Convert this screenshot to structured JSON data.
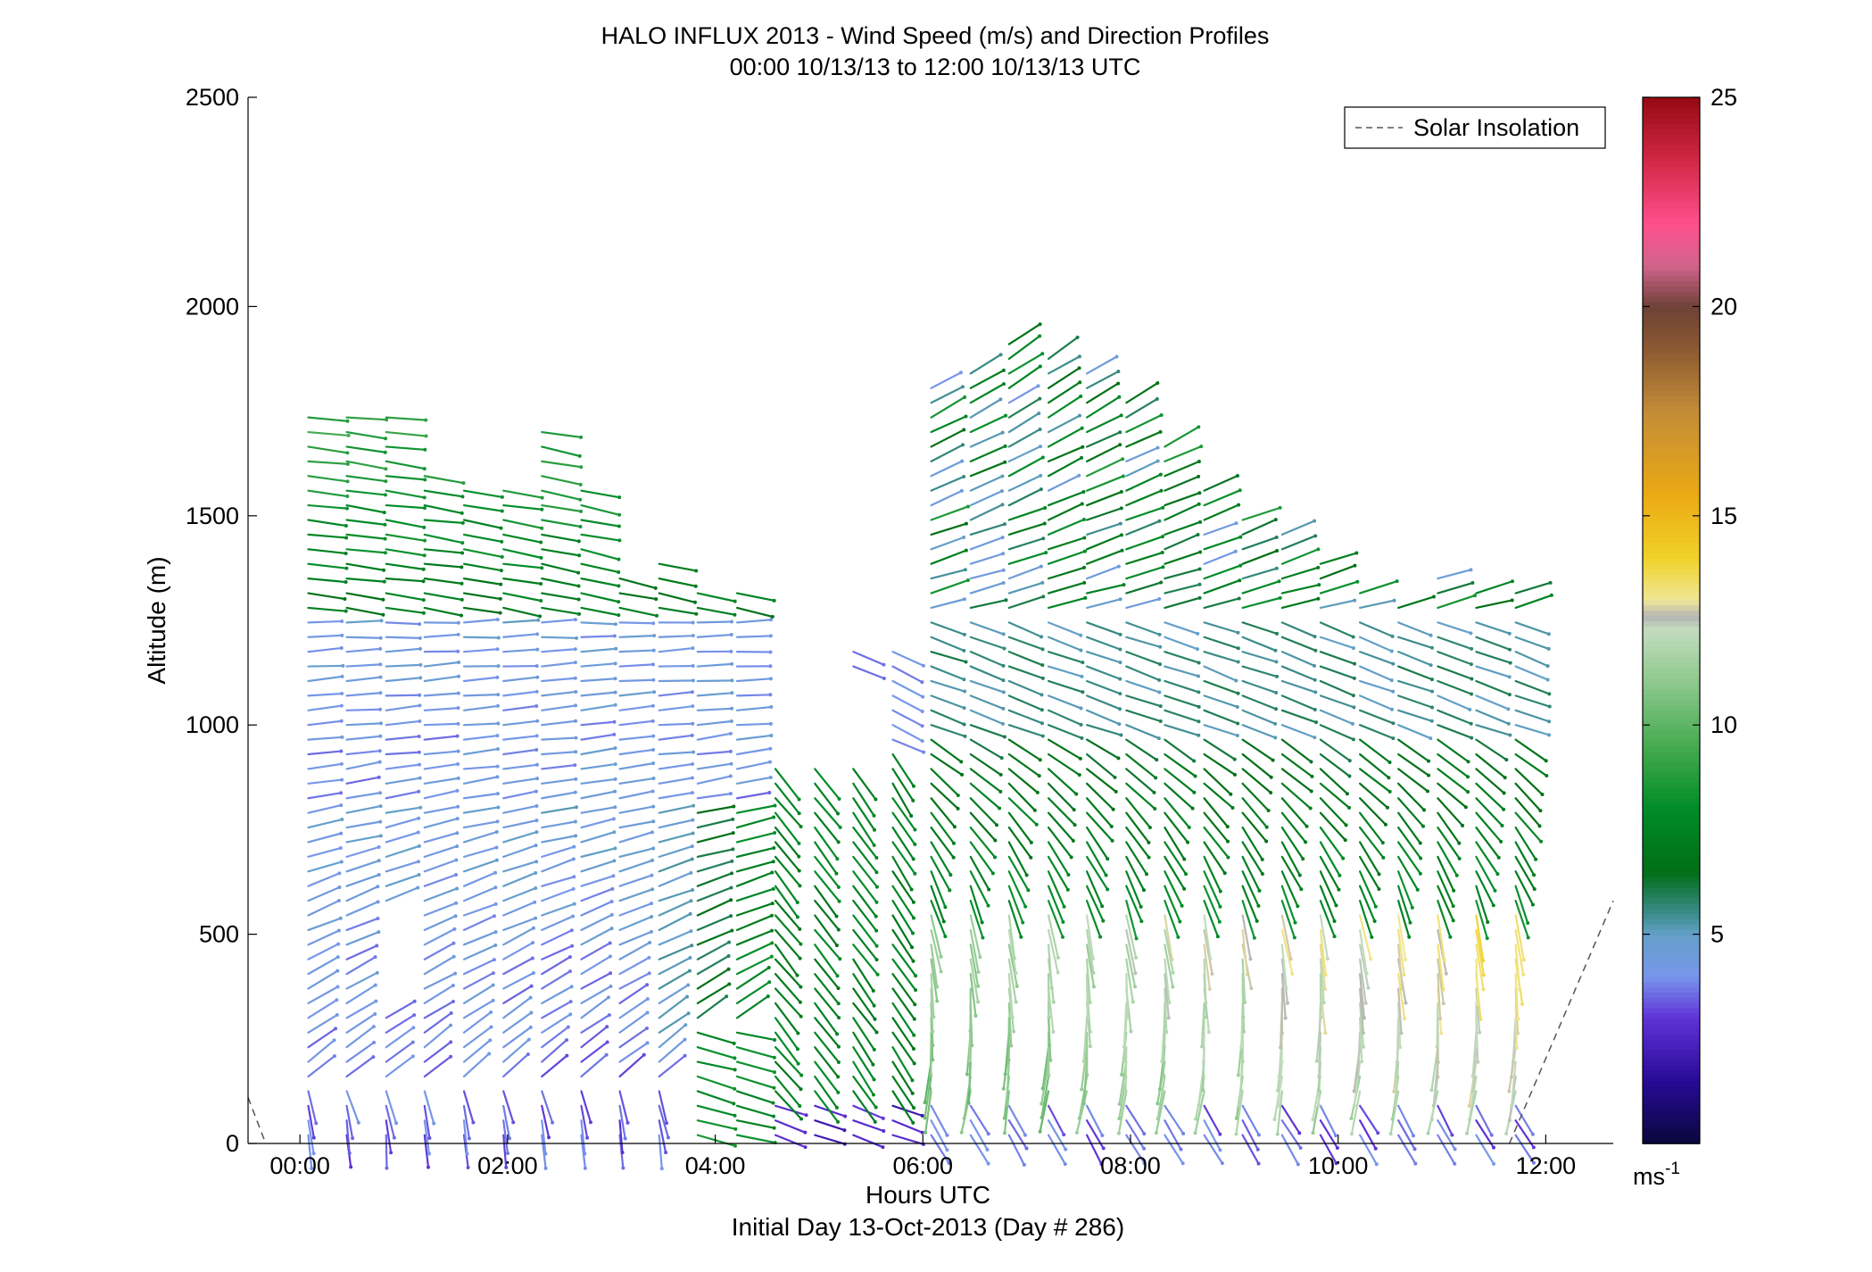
{
  "chart_data": {
    "type": "quiver",
    "title": "HALO INFLUX 2013 - Wind Speed (m/s) and Direction Profiles",
    "subtitle": "00:00 10/13/13 to 12:00 10/13/13  UTC",
    "xlabel": "Hours UTC",
    "xlabel2": "Initial Day 13-Oct-2013 (Day # 286)",
    "ylabel": "Altitude (m)",
    "xlim": [
      -0.5,
      12.65
    ],
    "ylim": [
      0,
      2500
    ],
    "x_ticks": [
      0,
      2,
      4,
      6,
      8,
      10,
      12
    ],
    "x_tick_labels": [
      "00:00",
      "02:00",
      "04:00",
      "06:00",
      "08:00",
      "10:00",
      "12:00"
    ],
    "y_ticks": [
      0,
      500,
      1000,
      1500,
      2000,
      2500
    ],
    "y_tick_labels": [
      "0",
      "500",
      "1000",
      "1500",
      "2000",
      "2500"
    ],
    "legend": {
      "position": "top-right",
      "entries": [
        "Solar Insolation"
      ]
    },
    "colorbar": {
      "min": 0,
      "max": 25,
      "ticks": [
        5,
        10,
        15,
        20,
        25
      ],
      "tick_labels": [
        "5",
        "10",
        "15",
        "20",
        "25"
      ],
      "unit": "ms",
      "unit_exp": "-1"
    },
    "solar_insolation": {
      "color": "#555555",
      "segments": [
        {
          "x": [
            -0.5,
            -0.33
          ],
          "y": [
            110,
            0
          ]
        },
        {
          "x": [
            11.65,
            12.65
          ],
          "y": [
            0,
            580
          ]
        }
      ]
    },
    "profile_times": [
      0.08,
      0.45,
      0.83,
      1.2,
      1.58,
      1.96,
      2.33,
      2.71,
      3.08,
      3.46,
      3.83,
      4.21,
      4.58,
      4.96,
      5.33,
      5.71,
      6.08,
      6.46,
      6.83,
      7.21,
      7.58,
      7.96,
      8.33,
      8.71,
      9.08,
      9.46,
      9.83,
      10.21,
      10.58,
      10.96,
      11.33,
      11.71
    ],
    "profile_tops": [
      1750,
      1750,
      1750,
      1620,
      1580,
      1580,
      1720,
      1580,
      1370,
      1410,
      1340,
      1340,
      1060,
      920,
      1180,
      1180,
      1830,
      1860,
      1920,
      1880,
      1870,
      1790,
      1680,
      1580,
      1520,
      1470,
      1400,
      1330,
      1300,
      1370,
      1340,
      1340
    ],
    "wind_field": {
      "description_levels_m": [
        20,
        480,
        1000,
        1300,
        1700
      ],
      "speed_ms": {
        "early_low": 4,
        "early_mid": 4,
        "early_high": 8,
        "mid_low": 7,
        "mid_mid": 6,
        "late_low": 11,
        "late_mid": 8,
        "late_high": 5
      }
    }
  }
}
